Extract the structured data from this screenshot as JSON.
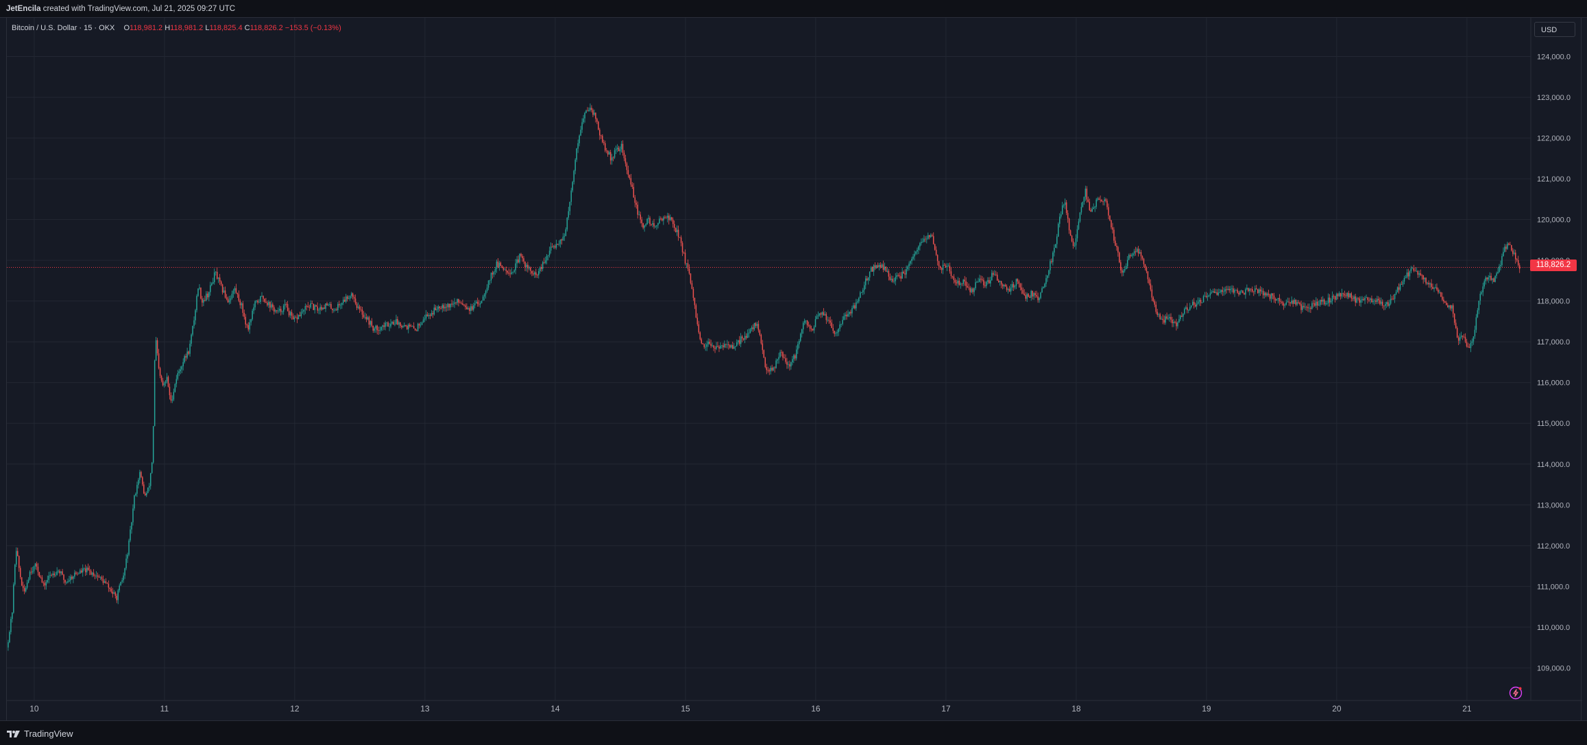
{
  "header": {
    "author": "JetEncila",
    "credit": "created with TradingView.com, Jul 21, 2025 09:27 UTC"
  },
  "legend": {
    "symbol": "Bitcoin / U.S. Dollar · 15 · OKX",
    "o_label": "O",
    "o_value": "118,981.2",
    "h_label": "H",
    "h_value": "118,981.2",
    "l_label": "L",
    "l_value": "118,825.4",
    "c_label": "C",
    "c_value": "118,826.2",
    "change": "−153.5 (−0.13%)"
  },
  "currency_button": "USD",
  "last_price_label": "118,826.2",
  "footer": {
    "brand": "TradingView"
  },
  "icons": {
    "logo": "tradingview-logo-icon",
    "bolt": "lightning-bolt-icon"
  },
  "colors": {
    "up": "#26a69a",
    "down": "#ef5350",
    "background": "#161a25",
    "grid": "#232733",
    "last_price": "#f23645"
  },
  "chart_data": {
    "type": "candlestick",
    "symbol": "BTC/USD",
    "interval": "15",
    "exchange": "OKX",
    "ylim": [
      108200,
      124950
    ],
    "xlim": [
      9.79,
      21.49
    ],
    "last_price": 118826.2,
    "grid": true,
    "y_ticks": [
      109000,
      110000,
      111000,
      112000,
      113000,
      114000,
      115000,
      116000,
      117000,
      118000,
      119000,
      120000,
      121000,
      122000,
      123000,
      124000
    ],
    "y_tick_labels": [
      "109,000.0",
      "110,000.0",
      "111,000.0",
      "112,000.0",
      "113,000.0",
      "114,000.0",
      "115,000.0",
      "116,000.0",
      "117,000.0",
      "118,000.0",
      "119,000.0",
      "120,000.0",
      "121,000.0",
      "122,000.0",
      "123,000.0",
      "124,000.0"
    ],
    "x_ticks": [
      10,
      11,
      12,
      13,
      14,
      15,
      16,
      17,
      18,
      19,
      20,
      21
    ],
    "x_tick_labels": [
      "10",
      "11",
      "12",
      "13",
      "14",
      "15",
      "16",
      "17",
      "18",
      "19",
      "20",
      "21"
    ],
    "price_path": [
      [
        9.8,
        109500
      ],
      [
        9.84,
        110300
      ],
      [
        9.87,
        112000
      ],
      [
        9.9,
        111300
      ],
      [
        9.93,
        110800
      ],
      [
        9.98,
        111400
      ],
      [
        10.03,
        111500
      ],
      [
        10.08,
        111000
      ],
      [
        10.14,
        111300
      ],
      [
        10.2,
        111400
      ],
      [
        10.25,
        111100
      ],
      [
        10.32,
        111300
      ],
      [
        10.4,
        111400
      ],
      [
        10.48,
        111300
      ],
      [
        10.55,
        111100
      ],
      [
        10.6,
        110900
      ],
      [
        10.64,
        110700
      ],
      [
        10.7,
        111300
      ],
      [
        10.74,
        112100
      ],
      [
        10.78,
        113200
      ],
      [
        10.82,
        113800
      ],
      [
        10.86,
        113200
      ],
      [
        10.89,
        113400
      ],
      [
        10.92,
        114200
      ],
      [
        10.94,
        117200
      ],
      [
        10.97,
        116200
      ],
      [
        11.0,
        115900
      ],
      [
        11.03,
        116100
      ],
      [
        11.06,
        115500
      ],
      [
        11.1,
        116100
      ],
      [
        11.15,
        116500
      ],
      [
        11.2,
        116800
      ],
      [
        11.24,
        117600
      ],
      [
        11.27,
        118400
      ],
      [
        11.3,
        118000
      ],
      [
        11.35,
        118200
      ],
      [
        11.4,
        118700
      ],
      [
        11.45,
        118300
      ],
      [
        11.5,
        118000
      ],
      [
        11.55,
        118300
      ],
      [
        11.6,
        117900
      ],
      [
        11.65,
        117300
      ],
      [
        11.7,
        117900
      ],
      [
        11.76,
        118100
      ],
      [
        11.82,
        117900
      ],
      [
        11.88,
        117700
      ],
      [
        11.94,
        117900
      ],
      [
        12.0,
        117500
      ],
      [
        12.06,
        117700
      ],
      [
        12.12,
        117900
      ],
      [
        12.18,
        117800
      ],
      [
        12.25,
        117900
      ],
      [
        12.32,
        117800
      ],
      [
        12.38,
        118000
      ],
      [
        12.45,
        118200
      ],
      [
        12.5,
        117800
      ],
      [
        12.56,
        117600
      ],
      [
        12.62,
        117300
      ],
      [
        12.7,
        117400
      ],
      [
        12.78,
        117500
      ],
      [
        12.86,
        117400
      ],
      [
        12.94,
        117300
      ],
      [
        13.0,
        117600
      ],
      [
        13.06,
        117700
      ],
      [
        13.12,
        117900
      ],
      [
        13.2,
        117900
      ],
      [
        13.28,
        118000
      ],
      [
        13.36,
        117800
      ],
      [
        13.44,
        118000
      ],
      [
        13.5,
        118500
      ],
      [
        13.56,
        118900
      ],
      [
        13.62,
        118800
      ],
      [
        13.68,
        118700
      ],
      [
        13.74,
        119100
      ],
      [
        13.8,
        118800
      ],
      [
        13.86,
        118600
      ],
      [
        13.92,
        118900
      ],
      [
        13.98,
        119300
      ],
      [
        14.02,
        119400
      ],
      [
        14.08,
        119600
      ],
      [
        14.12,
        120300
      ],
      [
        14.16,
        121400
      ],
      [
        14.2,
        122200
      ],
      [
        14.24,
        122600
      ],
      [
        14.28,
        122800
      ],
      [
        14.32,
        122500
      ],
      [
        14.36,
        122000
      ],
      [
        14.4,
        121700
      ],
      [
        14.44,
        121500
      ],
      [
        14.48,
        121700
      ],
      [
        14.52,
        121800
      ],
      [
        14.56,
        121200
      ],
      [
        14.6,
        120800
      ],
      [
        14.64,
        120200
      ],
      [
        14.68,
        119800
      ],
      [
        14.72,
        120000
      ],
      [
        14.78,
        119800
      ],
      [
        14.84,
        120100
      ],
      [
        14.9,
        120000
      ],
      [
        14.96,
        119600
      ],
      [
        15.0,
        119100
      ],
      [
        15.04,
        118600
      ],
      [
        15.08,
        117900
      ],
      [
        15.12,
        117000
      ],
      [
        15.16,
        116800
      ],
      [
        15.2,
        117000
      ],
      [
        15.26,
        116800
      ],
      [
        15.32,
        117000
      ],
      [
        15.38,
        116800
      ],
      [
        15.44,
        117100
      ],
      [
        15.5,
        117200
      ],
      [
        15.56,
        117500
      ],
      [
        15.62,
        116400
      ],
      [
        15.68,
        116300
      ],
      [
        15.74,
        116800
      ],
      [
        15.8,
        116400
      ],
      [
        15.86,
        116700
      ],
      [
        15.92,
        117500
      ],
      [
        15.98,
        117300
      ],
      [
        16.04,
        117700
      ],
      [
        16.1,
        117600
      ],
      [
        16.16,
        117200
      ],
      [
        16.22,
        117600
      ],
      [
        16.28,
        117700
      ],
      [
        16.36,
        118200
      ],
      [
        16.42,
        118700
      ],
      [
        16.48,
        118900
      ],
      [
        16.54,
        118800
      ],
      [
        16.6,
        118500
      ],
      [
        16.66,
        118600
      ],
      [
        16.72,
        118800
      ],
      [
        16.78,
        119200
      ],
      [
        16.84,
        119500
      ],
      [
        16.9,
        119600
      ],
      [
        16.96,
        118800
      ],
      [
        17.02,
        118900
      ],
      [
        17.08,
        118400
      ],
      [
        17.14,
        118500
      ],
      [
        17.2,
        118200
      ],
      [
        17.26,
        118500
      ],
      [
        17.32,
        118400
      ],
      [
        17.38,
        118700
      ],
      [
        17.44,
        118400
      ],
      [
        17.5,
        118300
      ],
      [
        17.56,
        118500
      ],
      [
        17.62,
        118100
      ],
      [
        17.68,
        118200
      ],
      [
        17.72,
        118000
      ],
      [
        17.78,
        118600
      ],
      [
        17.84,
        119200
      ],
      [
        17.88,
        120000
      ],
      [
        17.92,
        120500
      ],
      [
        17.96,
        119700
      ],
      [
        18.0,
        119300
      ],
      [
        18.04,
        120200
      ],
      [
        18.08,
        120700
      ],
      [
        18.12,
        120200
      ],
      [
        18.18,
        120500
      ],
      [
        18.24,
        120400
      ],
      [
        18.28,
        119800
      ],
      [
        18.32,
        119300
      ],
      [
        18.36,
        118700
      ],
      [
        18.42,
        119100
      ],
      [
        18.48,
        119300
      ],
      [
        18.54,
        118800
      ],
      [
        18.58,
        118300
      ],
      [
        18.62,
        117800
      ],
      [
        18.66,
        117500
      ],
      [
        18.72,
        117600
      ],
      [
        18.78,
        117400
      ],
      [
        18.84,
        117800
      ],
      [
        18.9,
        117900
      ],
      [
        18.96,
        118000
      ],
      [
        19.02,
        118100
      ],
      [
        19.08,
        118200
      ],
      [
        19.14,
        118300
      ],
      [
        19.2,
        118300
      ],
      [
        19.28,
        118200
      ],
      [
        19.36,
        118300
      ],
      [
        19.44,
        118200
      ],
      [
        19.52,
        118100
      ],
      [
        19.6,
        117900
      ],
      [
        19.68,
        118000
      ],
      [
        19.76,
        117800
      ],
      [
        19.84,
        117900
      ],
      [
        19.92,
        118000
      ],
      [
        20.0,
        118100
      ],
      [
        20.08,
        118200
      ],
      [
        20.16,
        118000
      ],
      [
        20.24,
        118100
      ],
      [
        20.32,
        118000
      ],
      [
        20.4,
        117900
      ],
      [
        20.48,
        118300
      ],
      [
        20.54,
        118600
      ],
      [
        20.6,
        118800
      ],
      [
        20.66,
        118600
      ],
      [
        20.72,
        118400
      ],
      [
        20.78,
        118300
      ],
      [
        20.84,
        118000
      ],
      [
        20.9,
        117800
      ],
      [
        20.94,
        117000
      ],
      [
        20.98,
        117200
      ],
      [
        21.02,
        116800
      ],
      [
        21.06,
        117100
      ],
      [
        21.1,
        118000
      ],
      [
        21.14,
        118500
      ],
      [
        21.18,
        118600
      ],
      [
        21.22,
        118500
      ],
      [
        21.26,
        118800
      ],
      [
        21.3,
        119300
      ],
      [
        21.34,
        119400
      ],
      [
        21.38,
        119100
      ],
      [
        21.41,
        118826
      ]
    ]
  }
}
